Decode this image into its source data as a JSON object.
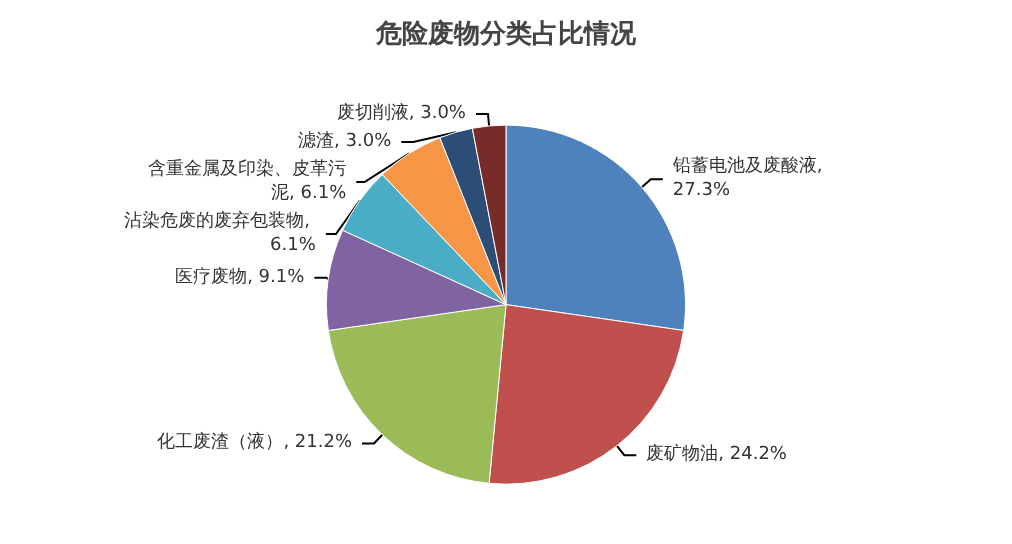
{
  "chart_data": {
    "type": "pie",
    "title": "危险废物分类占比情况",
    "categories": [
      "铅蓄电池及废酸液",
      "废矿物油",
      "化工废渣（液）",
      "医疗废物",
      "沾染危废的废弃包装物",
      "含重金属及印染、皮革污泥",
      "滤渣",
      "废切削液"
    ],
    "values": [
      27.3,
      24.2,
      21.2,
      9.1,
      6.1,
      6.1,
      3.0,
      3.0
    ],
    "colors": [
      "#4f81bd",
      "#c0504d",
      "#9bbb59",
      "#8064a2",
      "#4bacc6",
      "#f79646",
      "#2c4d75",
      "#772c2a"
    ],
    "value_labels": [
      ", 27.3%",
      ", 24.2%",
      ", 21.2%",
      ", 9.1%",
      ", 6.1%",
      ", 6.1%",
      ", 3.0%",
      ", 3.0%"
    ],
    "legend": false
  }
}
